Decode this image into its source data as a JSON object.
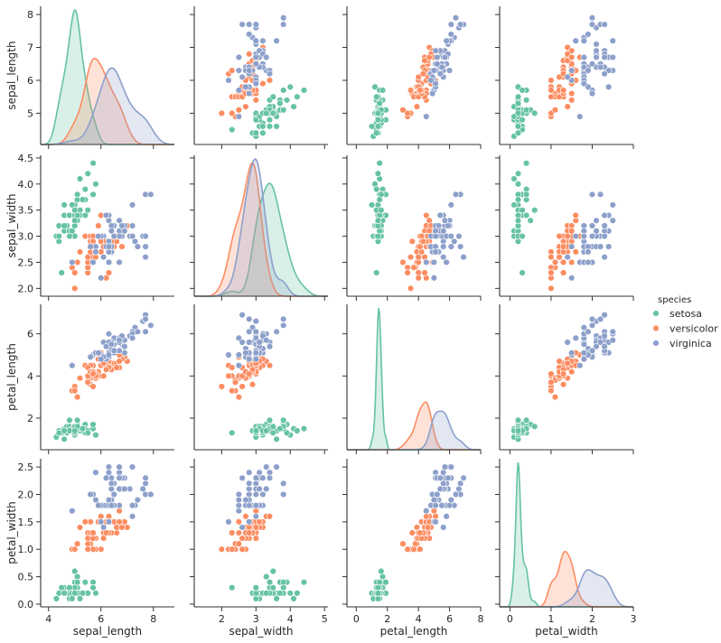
{
  "chart_data": {
    "type": "scatter",
    "variables": [
      "sepal_length",
      "sepal_width",
      "petal_length",
      "petal_width"
    ],
    "hue": "species",
    "diagonal": "kde",
    "legend": {
      "title": "species",
      "placement": "right",
      "entries": [
        {
          "label": "setosa",
          "color": "#66c2a5"
        },
        {
          "label": "versicolor",
          "color": "#fc8d62"
        },
        {
          "label": "virginica",
          "color": "#8da0cb"
        }
      ]
    },
    "axes": {
      "sepal_length": {
        "range": [
          3.7,
          8.8
        ],
        "ticks": [
          4,
          6,
          8
        ],
        "tick_labels": [
          "4",
          "6",
          "8"
        ]
      },
      "sepal_width": {
        "range": [
          1.2,
          5.1
        ],
        "ticks": [
          2,
          3,
          4,
          5
        ],
        "tick_labels": [
          "2",
          "3",
          "4",
          "5"
        ]
      },
      "petal_length": {
        "range": [
          -0.6,
          8.0
        ],
        "ticks": [
          0,
          2,
          4,
          6,
          8
        ],
        "tick_labels": [
          "0",
          "2",
          "4",
          "6",
          "8"
        ]
      },
      "petal_width": {
        "range": [
          -0.25,
          3.0
        ],
        "ticks": [
          0,
          1,
          2,
          3
        ],
        "tick_labels": [
          "0",
          "1",
          "2",
          "3"
        ]
      }
    },
    "row_axes": {
      "sepal_length": {
        "range": [
          4.05,
          8.25
        ],
        "ticks": [
          5,
          6,
          7,
          8
        ],
        "tick_labels": [
          "5",
          "6",
          "7",
          "8"
        ]
      },
      "sepal_width": {
        "range": [
          1.85,
          4.55
        ],
        "ticks": [
          2.0,
          2.5,
          3.0,
          3.5,
          4.0,
          4.5
        ],
        "tick_labels": [
          "2.0",
          "2.5",
          "3.0",
          "3.5",
          "4.0",
          "4.5"
        ]
      },
      "petal_length": {
        "range": [
          0.5,
          7.4
        ],
        "ticks": [
          2,
          4,
          6
        ],
        "tick_labels": [
          "2",
          "4",
          "6"
        ]
      },
      "petal_width": {
        "range": [
          -0.05,
          2.65
        ],
        "ticks": [
          0.0,
          0.5,
          1.0,
          1.5,
          2.0,
          2.5
        ],
        "tick_labels": [
          "0.0",
          "0.5",
          "1.0",
          "1.5",
          "2.0",
          "2.5"
        ]
      }
    },
    "series": [
      {
        "name": "setosa",
        "color": "#66c2a5",
        "sepal_length": [
          5.1,
          4.9,
          4.7,
          4.6,
          5.0,
          5.4,
          4.6,
          5.0,
          4.4,
          4.9,
          5.4,
          4.8,
          4.8,
          4.3,
          5.8,
          5.7,
          5.4,
          5.1,
          5.7,
          5.1,
          5.4,
          5.1,
          4.6,
          5.1,
          4.8,
          5.0,
          5.0,
          5.2,
          5.2,
          4.7,
          4.8,
          5.4,
          5.2,
          5.5,
          4.9,
          5.0,
          5.5,
          4.9,
          4.4,
          5.1,
          5.0,
          4.5,
          4.4,
          5.0,
          5.1,
          4.8,
          5.1,
          4.6,
          5.3,
          5.0
        ],
        "sepal_width": [
          3.5,
          3.0,
          3.2,
          3.1,
          3.6,
          3.9,
          3.4,
          3.4,
          2.9,
          3.1,
          3.7,
          3.4,
          3.0,
          3.0,
          4.0,
          4.4,
          3.9,
          3.5,
          3.8,
          3.8,
          3.4,
          3.7,
          3.6,
          3.3,
          3.4,
          3.0,
          3.4,
          3.5,
          3.4,
          3.2,
          3.1,
          3.4,
          4.1,
          4.2,
          3.1,
          3.2,
          3.5,
          3.6,
          3.0,
          3.4,
          3.5,
          2.3,
          3.2,
          3.5,
          3.8,
          3.0,
          3.8,
          3.2,
          3.7,
          3.3
        ],
        "petal_length": [
          1.4,
          1.4,
          1.3,
          1.5,
          1.4,
          1.7,
          1.4,
          1.5,
          1.4,
          1.5,
          1.5,
          1.6,
          1.4,
          1.1,
          1.2,
          1.5,
          1.3,
          1.4,
          1.7,
          1.5,
          1.7,
          1.5,
          1.0,
          1.7,
          1.9,
          1.6,
          1.6,
          1.5,
          1.4,
          1.6,
          1.6,
          1.5,
          1.5,
          1.4,
          1.5,
          1.2,
          1.3,
          1.4,
          1.3,
          1.5,
          1.3,
          1.3,
          1.3,
          1.6,
          1.9,
          1.4,
          1.6,
          1.4,
          1.5,
          1.4
        ],
        "petal_width": [
          0.2,
          0.2,
          0.2,
          0.2,
          0.2,
          0.4,
          0.3,
          0.2,
          0.2,
          0.1,
          0.2,
          0.2,
          0.1,
          0.1,
          0.2,
          0.4,
          0.4,
          0.3,
          0.3,
          0.3,
          0.2,
          0.4,
          0.2,
          0.5,
          0.2,
          0.2,
          0.4,
          0.2,
          0.2,
          0.2,
          0.2,
          0.4,
          0.1,
          0.2,
          0.2,
          0.2,
          0.2,
          0.1,
          0.2,
          0.2,
          0.3,
          0.3,
          0.2,
          0.6,
          0.4,
          0.3,
          0.2,
          0.2,
          0.2,
          0.2
        ]
      },
      {
        "name": "versicolor",
        "color": "#fc8d62",
        "sepal_length": [
          7.0,
          6.4,
          6.9,
          5.5,
          6.5,
          5.7,
          6.3,
          4.9,
          6.6,
          5.2,
          5.0,
          5.9,
          6.0,
          6.1,
          5.6,
          6.7,
          5.6,
          5.8,
          6.2,
          5.6,
          5.9,
          6.1,
          6.3,
          6.1,
          6.4,
          6.6,
          6.8,
          6.7,
          6.0,
          5.7,
          5.5,
          5.5,
          5.8,
          6.0,
          5.4,
          6.0,
          6.7,
          6.3,
          5.6,
          5.5,
          5.5,
          6.1,
          5.8,
          5.0,
          5.6,
          5.7,
          5.7,
          6.2,
          5.1,
          5.7
        ],
        "sepal_width": [
          3.2,
          3.2,
          3.1,
          2.3,
          2.8,
          2.8,
          3.3,
          2.4,
          2.9,
          2.7,
          2.0,
          3.0,
          2.2,
          2.9,
          2.9,
          3.1,
          3.0,
          2.7,
          2.2,
          2.5,
          3.2,
          2.8,
          2.5,
          2.8,
          2.9,
          3.0,
          2.8,
          3.0,
          2.9,
          2.6,
          2.4,
          2.4,
          2.7,
          2.7,
          3.0,
          3.4,
          3.1,
          2.3,
          3.0,
          2.5,
          2.6,
          3.0,
          2.6,
          2.3,
          2.7,
          3.0,
          2.9,
          2.9,
          2.5,
          2.8
        ],
        "petal_length": [
          4.7,
          4.5,
          4.9,
          4.0,
          4.6,
          4.5,
          4.7,
          3.3,
          4.6,
          3.9,
          3.5,
          4.2,
          4.0,
          4.7,
          3.6,
          4.4,
          4.5,
          4.1,
          4.5,
          3.9,
          4.8,
          4.0,
          4.9,
          4.7,
          4.3,
          4.4,
          4.8,
          5.0,
          4.5,
          3.5,
          3.8,
          3.7,
          3.9,
          5.1,
          4.5,
          4.5,
          4.7,
          4.4,
          4.1,
          4.0,
          4.4,
          4.6,
          4.0,
          3.3,
          4.2,
          4.2,
          4.2,
          4.3,
          3.0,
          4.1
        ],
        "petal_width": [
          1.4,
          1.5,
          1.5,
          1.3,
          1.5,
          1.3,
          1.6,
          1.0,
          1.3,
          1.4,
          1.0,
          1.5,
          1.0,
          1.4,
          1.3,
          1.4,
          1.5,
          1.0,
          1.5,
          1.1,
          1.8,
          1.3,
          1.5,
          1.2,
          1.3,
          1.4,
          1.4,
          1.7,
          1.5,
          1.0,
          1.1,
          1.0,
          1.2,
          1.6,
          1.5,
          1.6,
          1.5,
          1.3,
          1.3,
          1.3,
          1.2,
          1.4,
          1.2,
          1.0,
          1.3,
          1.2,
          1.3,
          1.3,
          1.1,
          1.3
        ]
      },
      {
        "name": "virginica",
        "color": "#8da0cb",
        "sepal_length": [
          6.3,
          5.8,
          7.1,
          6.3,
          6.5,
          7.6,
          4.9,
          7.3,
          6.7,
          7.2,
          6.5,
          6.4,
          6.8,
          5.7,
          5.8,
          6.4,
          6.5,
          7.7,
          7.7,
          6.0,
          6.9,
          5.6,
          7.7,
          6.3,
          6.7,
          7.2,
          6.2,
          6.1,
          6.4,
          7.2,
          7.4,
          7.9,
          6.4,
          6.3,
          6.1,
          7.7,
          6.3,
          6.4,
          6.0,
          6.9,
          6.7,
          6.9,
          5.8,
          6.8,
          6.7,
          6.7,
          6.3,
          6.5,
          6.2,
          5.9
        ],
        "sepal_width": [
          3.3,
          2.7,
          3.0,
          2.9,
          3.0,
          3.0,
          2.5,
          2.9,
          2.5,
          3.6,
          3.2,
          2.7,
          3.0,
          2.5,
          2.8,
          3.2,
          3.0,
          3.8,
          2.6,
          2.2,
          3.2,
          2.8,
          2.8,
          2.7,
          3.3,
          3.2,
          2.8,
          3.0,
          2.8,
          3.0,
          2.8,
          3.8,
          2.8,
          2.8,
          2.6,
          3.0,
          3.4,
          3.1,
          3.0,
          3.1,
          3.1,
          3.1,
          2.7,
          3.2,
          3.3,
          3.0,
          2.5,
          3.0,
          3.4,
          3.0
        ],
        "petal_length": [
          6.0,
          5.1,
          5.9,
          5.6,
          5.8,
          6.6,
          4.5,
          6.3,
          5.8,
          6.1,
          5.1,
          5.3,
          5.5,
          5.0,
          5.1,
          5.3,
          5.5,
          6.7,
          6.9,
          5.0,
          5.7,
          4.9,
          6.7,
          4.9,
          5.7,
          6.0,
          4.8,
          4.9,
          5.6,
          5.8,
          6.1,
          6.4,
          5.6,
          5.1,
          5.6,
          6.1,
          5.6,
          5.5,
          4.8,
          5.4,
          5.6,
          5.1,
          5.1,
          5.9,
          5.7,
          5.2,
          5.0,
          5.2,
          5.4,
          5.1
        ],
        "petal_width": [
          2.5,
          1.9,
          2.1,
          1.8,
          2.2,
          2.1,
          1.7,
          1.8,
          1.8,
          2.5,
          2.0,
          1.9,
          2.1,
          2.0,
          2.4,
          2.3,
          1.8,
          2.2,
          2.3,
          1.5,
          2.3,
          2.0,
          2.0,
          1.8,
          2.1,
          1.8,
          1.8,
          1.8,
          2.1,
          1.6,
          1.9,
          2.0,
          2.2,
          1.5,
          1.4,
          2.3,
          2.4,
          1.8,
          1.8,
          2.1,
          2.4,
          2.3,
          1.9,
          2.3,
          2.5,
          2.3,
          1.9,
          2.0,
          2.3,
          1.8
        ]
      }
    ]
  }
}
